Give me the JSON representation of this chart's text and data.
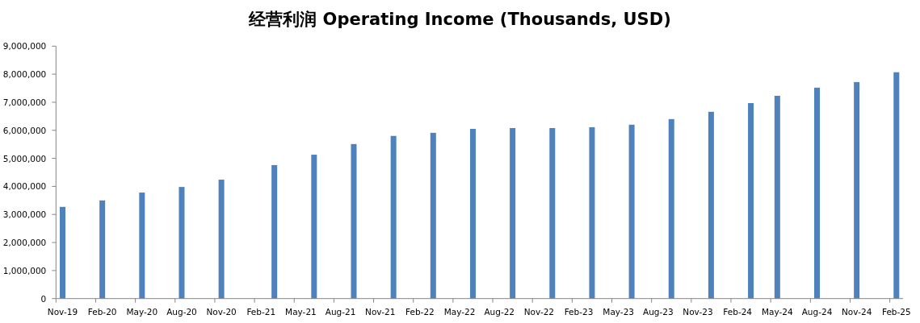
{
  "chart_data": {
    "type": "bar",
    "title": "经营利润 Operating Income (Thousands, USD)",
    "color": "#4f81bd",
    "grid": false,
    "x": [
      "2019-11",
      "2020-02",
      "2020-05",
      "2020-08",
      "2020-11",
      "2021-03",
      "2021-06",
      "2021-09",
      "2021-12",
      "2022-03",
      "2022-06",
      "2022-09",
      "2022-12",
      "2023-03",
      "2023-06",
      "2023-09",
      "2023-12",
      "2024-03",
      "2024-05",
      "2024-08",
      "2024-11",
      "2025-02"
    ],
    "values": [
      3270000,
      3500000,
      3780000,
      3980000,
      4240000,
      4760000,
      5130000,
      5510000,
      5800000,
      5910000,
      6050000,
      6080000,
      6080000,
      6110000,
      6200000,
      6400000,
      6660000,
      6970000,
      7230000,
      7520000,
      7720000,
      8070000
    ],
    "xlim": [
      "2019-11",
      "2025-03"
    ],
    "xticks": [
      {
        "value": "2019-11",
        "label": "Nov-19"
      },
      {
        "value": "2020-02",
        "label": "Feb-20"
      },
      {
        "value": "2020-05",
        "label": "May-20"
      },
      {
        "value": "2020-08",
        "label": "Aug-20"
      },
      {
        "value": "2020-11",
        "label": "Nov-20"
      },
      {
        "value": "2021-02",
        "label": "Feb-21"
      },
      {
        "value": "2021-05",
        "label": "May-21"
      },
      {
        "value": "2021-08",
        "label": "Aug-21"
      },
      {
        "value": "2021-11",
        "label": "Nov-21"
      },
      {
        "value": "2022-02",
        "label": "Feb-22"
      },
      {
        "value": "2022-05",
        "label": "May-22"
      },
      {
        "value": "2022-08",
        "label": "Aug-22"
      },
      {
        "value": "2022-11",
        "label": "Nov-22"
      },
      {
        "value": "2023-02",
        "label": "Feb-23"
      },
      {
        "value": "2023-05",
        "label": "May-23"
      },
      {
        "value": "2023-08",
        "label": "Aug-23"
      },
      {
        "value": "2023-11",
        "label": "Nov-23"
      },
      {
        "value": "2024-02",
        "label": "Feb-24"
      },
      {
        "value": "2024-05",
        "label": "May-24"
      },
      {
        "value": "2024-08",
        "label": "Aug-24"
      },
      {
        "value": "2024-11",
        "label": "Nov-24"
      },
      {
        "value": "2025-02",
        "label": "Feb-25"
      }
    ],
    "ylim": [
      0,
      9000000
    ],
    "yticks": [
      0,
      {
        "value": 1000000,
        "label": "1,000,000"
      },
      {
        "value": 2000000,
        "label": "2,000,000"
      },
      {
        "value": 3000000,
        "label": "3,000,000"
      },
      {
        "value": 4000000,
        "label": "4,000,000"
      },
      {
        "value": 5000000,
        "label": "5,000,000"
      },
      {
        "value": 6000000,
        "label": "6,000,000"
      },
      {
        "value": 7000000,
        "label": "7,000,000"
      },
      {
        "value": 8000000,
        "label": "8,000,000"
      },
      {
        "value": 9000000,
        "label": "9,000,000"
      }
    ]
  }
}
